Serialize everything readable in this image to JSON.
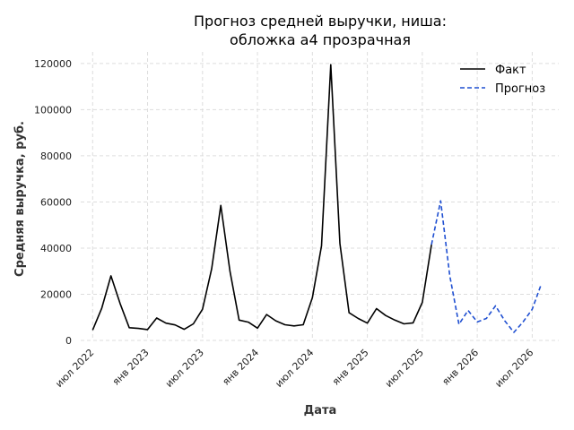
{
  "chart_data": {
    "type": "line",
    "title_line1": "Прогноз средней выручки, ниша:",
    "title_line2": "обложка а4 прозрачная",
    "xlabel": "Дата",
    "ylabel": "Средняя выручка, руб.",
    "ylim": [
      0,
      125000
    ],
    "y_ticks": [
      "0",
      "20000",
      "40000",
      "60000",
      "80000",
      "100000",
      "120000"
    ],
    "y_tick_values": [
      0,
      20000,
      40000,
      60000,
      80000,
      100000,
      120000
    ],
    "x_tick_labels": [
      "июл 2022",
      "янв 2023",
      "июл 2023",
      "янв 2024",
      "июл 2024",
      "янв 2025",
      "июл 2025",
      "янв 2026",
      "июл 2026"
    ],
    "x_tick_index": [
      0,
      6,
      12,
      18,
      24,
      30,
      36,
      42,
      48
    ],
    "x_range": [
      -1.3,
      50.9
    ],
    "grid": true,
    "legend_position": "top-right",
    "series": [
      {
        "name": "Факт",
        "color": "#000000",
        "style": "solid",
        "x": [
          0,
          1,
          2,
          3,
          4,
          5,
          6,
          7,
          8,
          9,
          10,
          11,
          12,
          13,
          14,
          15,
          16,
          17,
          18,
          19,
          20,
          21,
          22,
          23,
          24,
          25,
          26,
          27,
          28,
          29,
          30,
          31,
          32,
          33,
          34,
          35,
          36,
          37
        ],
        "values": [
          4500,
          14000,
          28000,
          16000,
          5500,
          5200,
          4700,
          9700,
          7500,
          6700,
          4800,
          7200,
          13500,
          31000,
          58500,
          30000,
          8800,
          7900,
          5300,
          11200,
          8500,
          6800,
          6300,
          6800,
          18500,
          41000,
          119500,
          42000,
          12000,
          9500,
          7500,
          13800,
          10800,
          8800,
          7200,
          7600,
          16500,
          41500
        ]
      },
      {
        "name": "Прогноз",
        "color": "#1f4fd1",
        "style": "dashed",
        "x": [
          37,
          38,
          39,
          40,
          41,
          42,
          43,
          44,
          45,
          46,
          47,
          48,
          49
        ],
        "values": [
          41500,
          60500,
          28000,
          7000,
          13000,
          8000,
          9500,
          15000,
          8500,
          3500,
          8000,
          13500,
          24500
        ]
      }
    ]
  }
}
